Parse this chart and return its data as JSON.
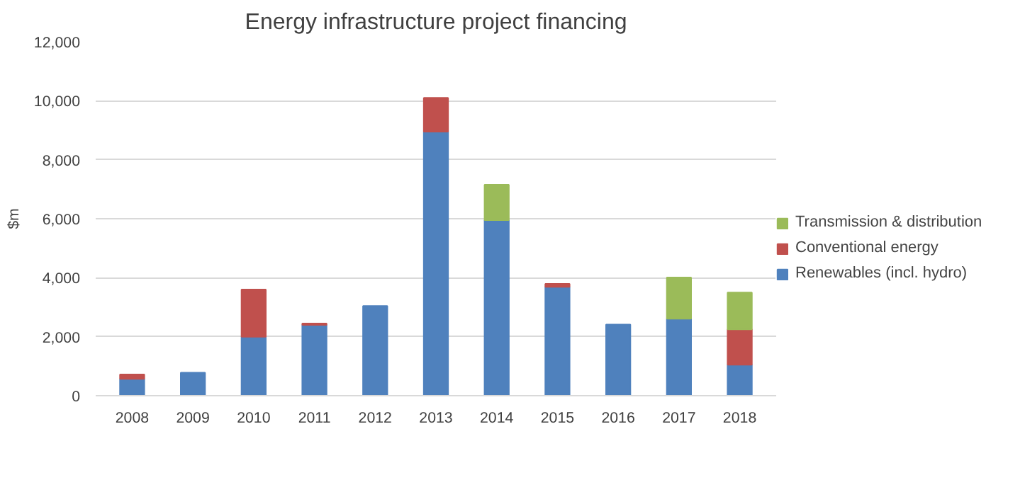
{
  "chart_data": {
    "type": "bar",
    "title": "Energy infrastructure project financing",
    "ylabel": "$m",
    "stacked": true,
    "categories": [
      "2008",
      "2009",
      "2010",
      "2011",
      "2012",
      "2013",
      "2014",
      "2015",
      "2016",
      "2017",
      "2018"
    ],
    "series": [
      {
        "name": "Renewables (incl. hydro)",
        "color": "#4f81bd",
        "values": [
          570,
          780,
          2000,
          2400,
          3040,
          8950,
          5950,
          3690,
          2410,
          2610,
          1050
        ]
      },
      {
        "name": "Conventional energy",
        "color": "#c0504d",
        "values": [
          150,
          null,
          1600,
          50,
          null,
          1150,
          null,
          100,
          null,
          null,
          1200
        ]
      },
      {
        "name": "Transmission & distribution",
        "color": "#9bbb59",
        "values": [
          null,
          null,
          null,
          null,
          null,
          null,
          1200,
          null,
          null,
          1400,
          1250
        ]
      }
    ],
    "ylim": [
      0,
      12000
    ],
    "yticks": [
      {
        "value": 0,
        "label": "0"
      },
      {
        "value": 2000,
        "label": "2,000"
      },
      {
        "value": 4000,
        "label": "4,000"
      },
      {
        "value": 6000,
        "label": "6,000"
      },
      {
        "value": 8000,
        "label": "8,000"
      },
      {
        "value": 10000,
        "label": "10,000"
      },
      {
        "value": 12000,
        "label": "12,000"
      }
    ],
    "grid": "y",
    "legend": "right"
  }
}
